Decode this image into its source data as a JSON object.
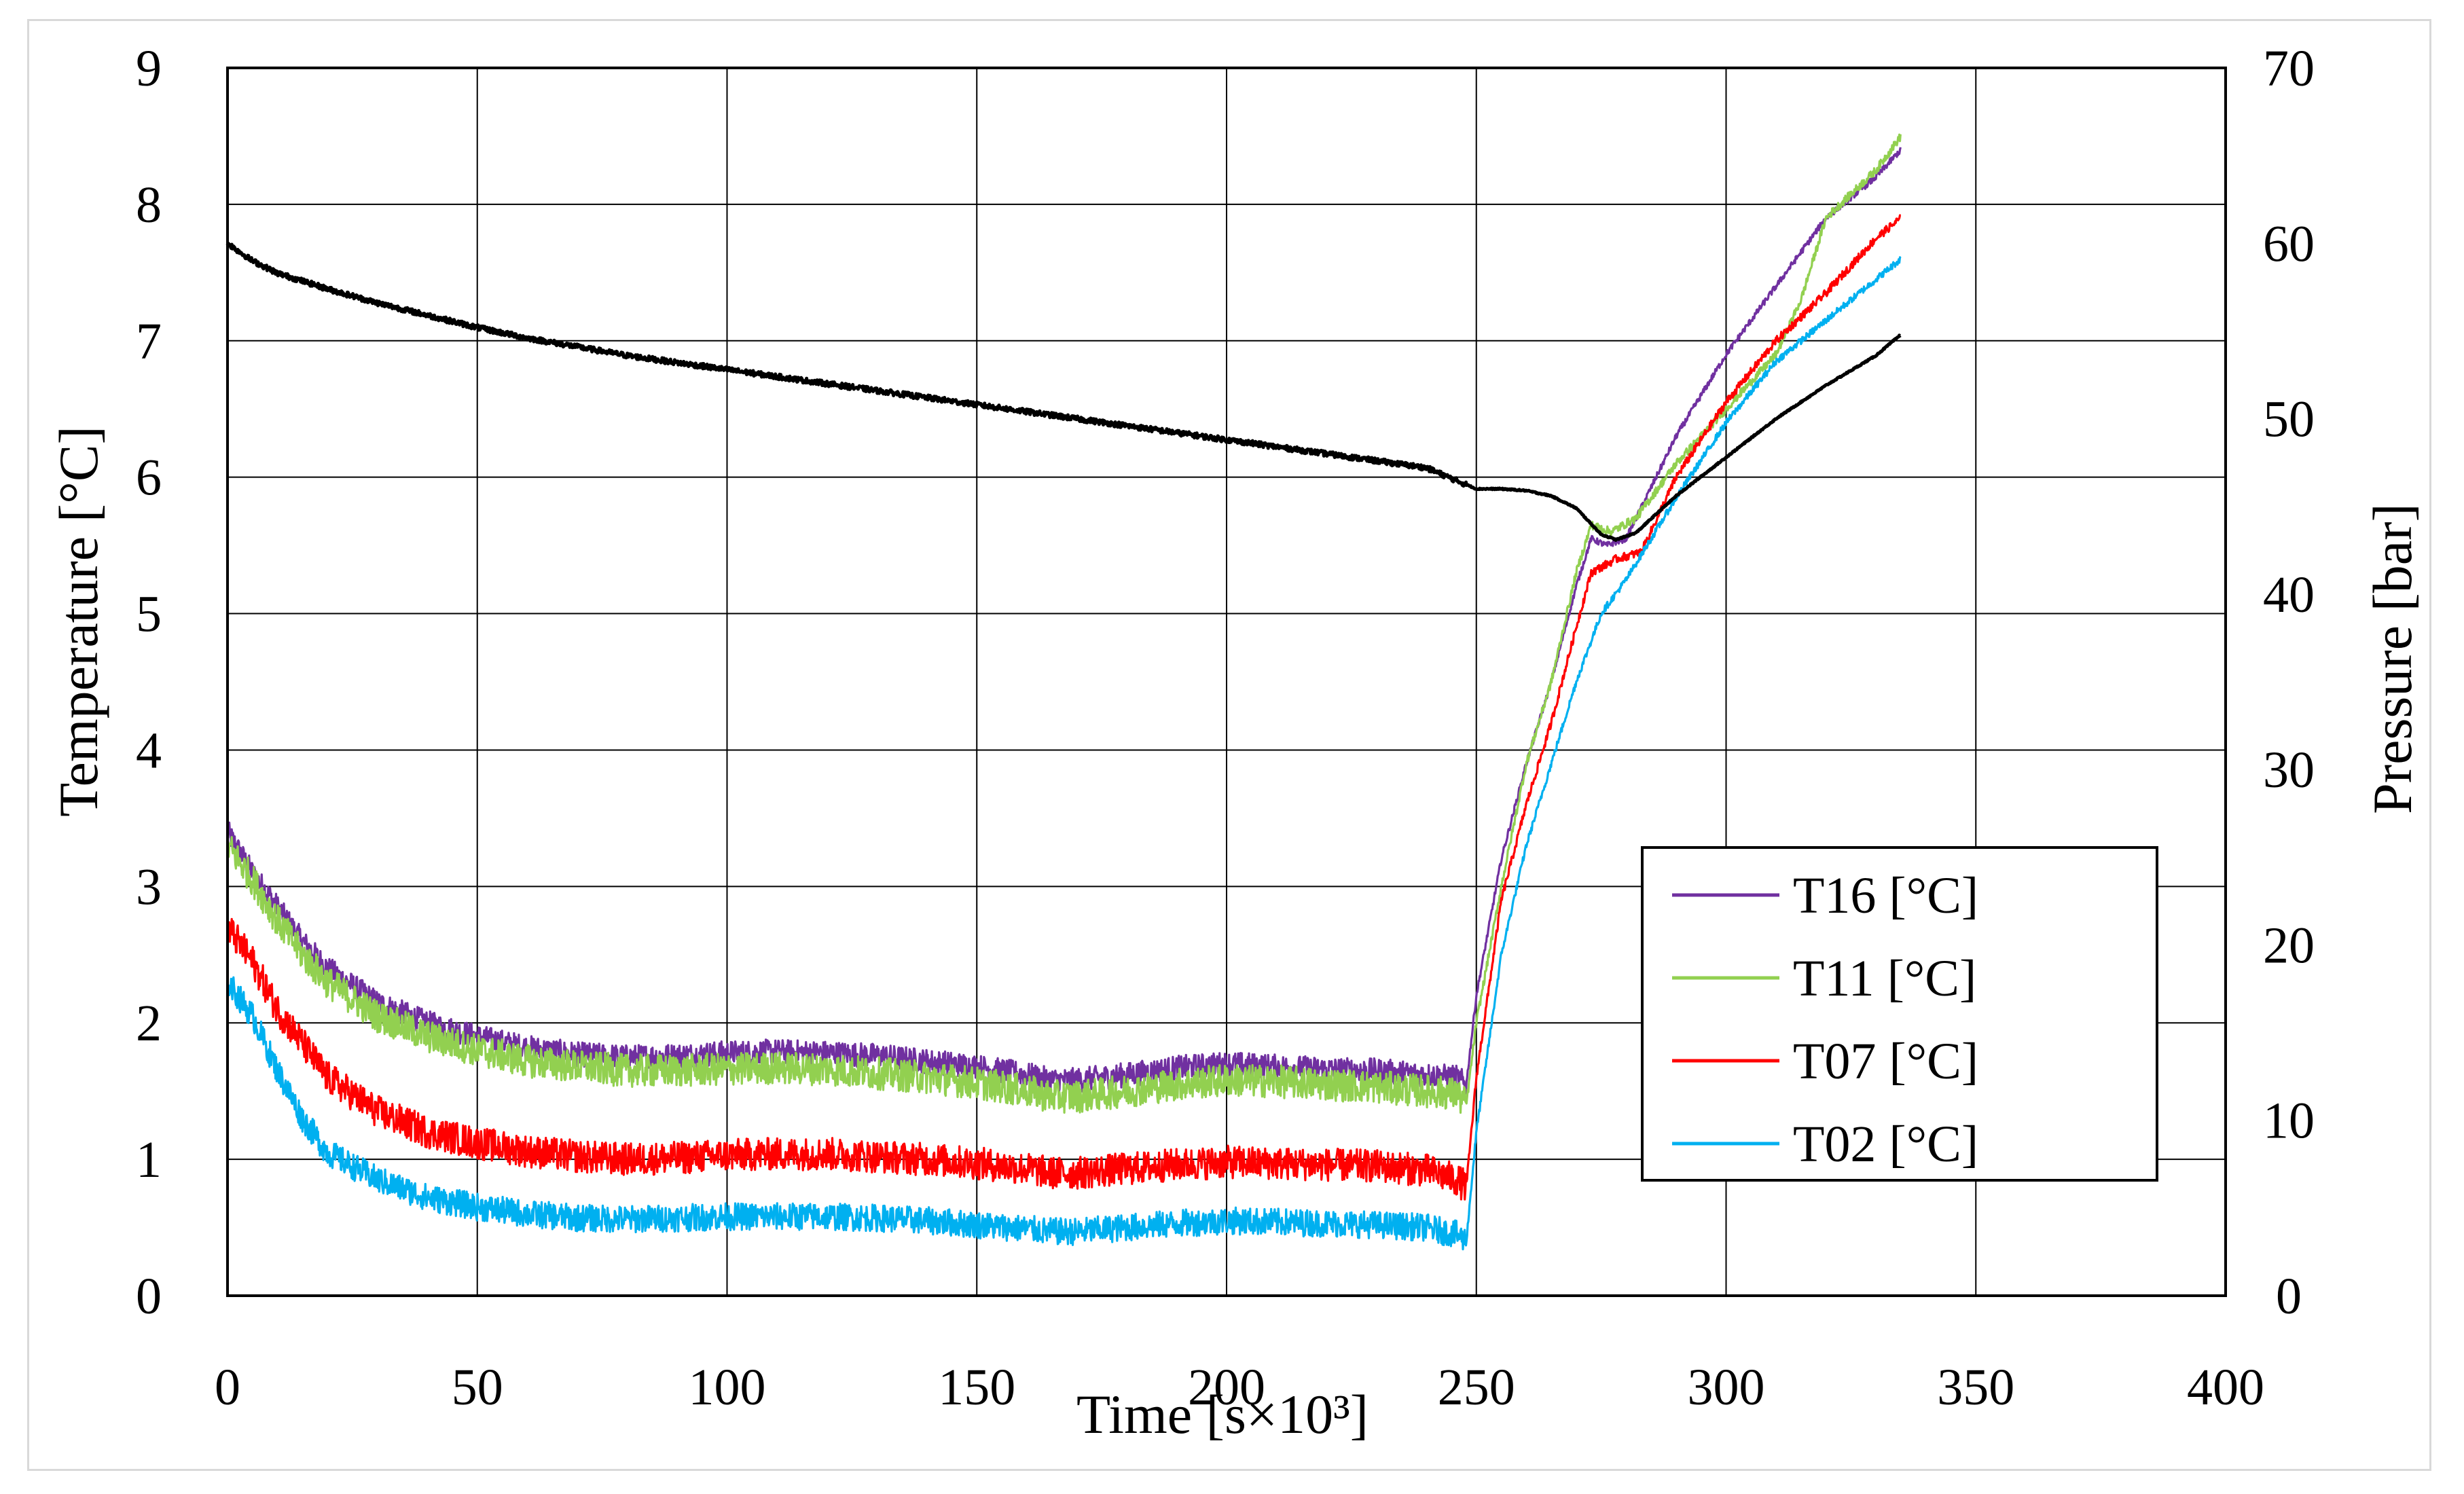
{
  "chart_data": {
    "type": "line",
    "title": "",
    "xlabel": "Time [s×10³]",
    "ylabel": "Temperature [°C]",
    "y2label": "Pressure [bar]",
    "xlim": [
      0,
      400
    ],
    "ylim": [
      0,
      9
    ],
    "y2lim": [
      0,
      70
    ],
    "x_ticks": [
      0,
      50,
      100,
      150,
      200,
      250,
      300,
      350,
      400
    ],
    "y_ticks": [
      0,
      1,
      2,
      3,
      4,
      5,
      6,
      7,
      8,
      9
    ],
    "y2_ticks": [
      0,
      10,
      20,
      30,
      40,
      50,
      60,
      70
    ],
    "grid": true,
    "legend_position": "lower-right",
    "series": [
      {
        "name": "T16 [°C]",
        "color": "#7030a0",
        "axis": "left",
        "noise": 0.09,
        "points": [
          [
            0,
            3.4
          ],
          [
            5,
            3.1
          ],
          [
            10,
            2.85
          ],
          [
            15,
            2.6
          ],
          [
            20,
            2.4
          ],
          [
            30,
            2.15
          ],
          [
            40,
            2.0
          ],
          [
            50,
            1.9
          ],
          [
            60,
            1.82
          ],
          [
            70,
            1.77
          ],
          [
            80,
            1.75
          ],
          [
            90,
            1.76
          ],
          [
            100,
            1.78
          ],
          [
            110,
            1.79
          ],
          [
            120,
            1.78
          ],
          [
            130,
            1.76
          ],
          [
            140,
            1.72
          ],
          [
            150,
            1.68
          ],
          [
            160,
            1.62
          ],
          [
            165,
            1.58
          ],
          [
            170,
            1.58
          ],
          [
            180,
            1.62
          ],
          [
            190,
            1.67
          ],
          [
            200,
            1.7
          ],
          [
            210,
            1.68
          ],
          [
            220,
            1.66
          ],
          [
            230,
            1.65
          ],
          [
            240,
            1.62
          ],
          [
            246,
            1.6
          ],
          [
            248,
            1.55
          ],
          [
            250,
            2.2
          ],
          [
            255,
            3.2
          ],
          [
            260,
            3.9
          ],
          [
            265,
            4.5
          ],
          [
            270,
            5.2
          ],
          [
            273,
            5.55
          ],
          [
            276,
            5.5
          ],
          [
            280,
            5.55
          ],
          [
            290,
            6.3
          ],
          [
            300,
            6.9
          ],
          [
            310,
            7.4
          ],
          [
            320,
            7.9
          ],
          [
            330,
            8.2
          ],
          [
            335,
            8.4
          ]
        ]
      },
      {
        "name": "T11 [°C]",
        "color": "#92d050",
        "axis": "left",
        "noise": 0.12,
        "points": [
          [
            0,
            3.3
          ],
          [
            5,
            3.05
          ],
          [
            10,
            2.75
          ],
          [
            15,
            2.5
          ],
          [
            20,
            2.3
          ],
          [
            30,
            2.05
          ],
          [
            40,
            1.9
          ],
          [
            50,
            1.8
          ],
          [
            60,
            1.72
          ],
          [
            70,
            1.68
          ],
          [
            80,
            1.65
          ],
          [
            90,
            1.65
          ],
          [
            100,
            1.66
          ],
          [
            110,
            1.67
          ],
          [
            120,
            1.66
          ],
          [
            130,
            1.63
          ],
          [
            140,
            1.6
          ],
          [
            150,
            1.56
          ],
          [
            160,
            1.5
          ],
          [
            165,
            1.46
          ],
          [
            170,
            1.46
          ],
          [
            180,
            1.5
          ],
          [
            190,
            1.55
          ],
          [
            200,
            1.58
          ],
          [
            210,
            1.57
          ],
          [
            220,
            1.55
          ],
          [
            230,
            1.53
          ],
          [
            240,
            1.5
          ],
          [
            246,
            1.48
          ],
          [
            248,
            1.4
          ],
          [
            250,
            2.0
          ],
          [
            255,
            3.0
          ],
          [
            260,
            3.9
          ],
          [
            265,
            4.5
          ],
          [
            270,
            5.3
          ],
          [
            273,
            5.65
          ],
          [
            277,
            5.6
          ],
          [
            282,
            5.7
          ],
          [
            290,
            6.1
          ],
          [
            300,
            6.5
          ],
          [
            310,
            6.9
          ],
          [
            315,
            7.3
          ],
          [
            320,
            7.9
          ],
          [
            330,
            8.25
          ],
          [
            335,
            8.5
          ]
        ]
      },
      {
        "name": "T07 [°C]",
        "color": "#ff0000",
        "axis": "left",
        "noise": 0.12,
        "points": [
          [
            0,
            2.7
          ],
          [
            5,
            2.45
          ],
          [
            10,
            2.1
          ],
          [
            15,
            1.85
          ],
          [
            20,
            1.6
          ],
          [
            30,
            1.35
          ],
          [
            40,
            1.2
          ],
          [
            50,
            1.12
          ],
          [
            60,
            1.06
          ],
          [
            70,
            1.02
          ],
          [
            80,
            1.0
          ],
          [
            90,
            1.01
          ],
          [
            100,
            1.03
          ],
          [
            110,
            1.04
          ],
          [
            120,
            1.04
          ],
          [
            130,
            1.02
          ],
          [
            140,
            1.0
          ],
          [
            150,
            0.97
          ],
          [
            160,
            0.93
          ],
          [
            165,
            0.9
          ],
          [
            170,
            0.9
          ],
          [
            180,
            0.93
          ],
          [
            190,
            0.96
          ],
          [
            200,
            0.98
          ],
          [
            210,
            0.97
          ],
          [
            220,
            0.96
          ],
          [
            230,
            0.95
          ],
          [
            240,
            0.92
          ],
          [
            246,
            0.85
          ],
          [
            248,
            0.8
          ],
          [
            250,
            1.6
          ],
          [
            255,
            2.9
          ],
          [
            260,
            3.6
          ],
          [
            265,
            4.2
          ],
          [
            270,
            4.9
          ],
          [
            273,
            5.3
          ],
          [
            278,
            5.4
          ],
          [
            283,
            5.45
          ],
          [
            290,
            6.0
          ],
          [
            300,
            6.55
          ],
          [
            310,
            7.0
          ],
          [
            320,
            7.35
          ],
          [
            330,
            7.75
          ],
          [
            335,
            7.9
          ]
        ]
      },
      {
        "name": "T02 [°C]",
        "color": "#00b0f0",
        "axis": "left",
        "noise": 0.1,
        "points": [
          [
            0,
            2.3
          ],
          [
            5,
            2.05
          ],
          [
            10,
            1.65
          ],
          [
            15,
            1.3
          ],
          [
            20,
            1.05
          ],
          [
            30,
            0.85
          ],
          [
            40,
            0.72
          ],
          [
            50,
            0.65
          ],
          [
            60,
            0.6
          ],
          [
            70,
            0.57
          ],
          [
            80,
            0.56
          ],
          [
            90,
            0.57
          ],
          [
            100,
            0.58
          ],
          [
            110,
            0.58
          ],
          [
            120,
            0.58
          ],
          [
            130,
            0.57
          ],
          [
            140,
            0.55
          ],
          [
            150,
            0.52
          ],
          [
            160,
            0.49
          ],
          [
            165,
            0.47
          ],
          [
            170,
            0.47
          ],
          [
            180,
            0.5
          ],
          [
            190,
            0.53
          ],
          [
            200,
            0.55
          ],
          [
            210,
            0.54
          ],
          [
            220,
            0.53
          ],
          [
            230,
            0.52
          ],
          [
            240,
            0.5
          ],
          [
            246,
            0.45
          ],
          [
            248,
            0.4
          ],
          [
            250,
            1.2
          ],
          [
            255,
            2.5
          ],
          [
            260,
            3.3
          ],
          [
            265,
            3.9
          ],
          [
            270,
            4.5
          ],
          [
            275,
            5.0
          ],
          [
            280,
            5.25
          ],
          [
            290,
            5.85
          ],
          [
            300,
            6.4
          ],
          [
            310,
            6.85
          ],
          [
            320,
            7.15
          ],
          [
            330,
            7.45
          ],
          [
            335,
            7.6
          ]
        ]
      },
      {
        "name": "Pressure [bar]",
        "color": "#000000",
        "axis": "right",
        "noise": 0.15,
        "in_legend": false,
        "points": [
          [
            0,
            60
          ],
          [
            5,
            59
          ],
          [
            10,
            58.3
          ],
          [
            20,
            57.4
          ],
          [
            30,
            56.6
          ],
          [
            40,
            55.9
          ],
          [
            50,
            55.2
          ],
          [
            60,
            54.6
          ],
          [
            70,
            54.1
          ],
          [
            80,
            53.6
          ],
          [
            90,
            53.2
          ],
          [
            100,
            52.8
          ],
          [
            110,
            52.4
          ],
          [
            120,
            52.0
          ],
          [
            130,
            51.6
          ],
          [
            140,
            51.2
          ],
          [
            150,
            50.8
          ],
          [
            160,
            50.4
          ],
          [
            170,
            50.0
          ],
          [
            180,
            49.6
          ],
          [
            190,
            49.2
          ],
          [
            200,
            48.8
          ],
          [
            210,
            48.4
          ],
          [
            220,
            48.0
          ],
          [
            230,
            47.6
          ],
          [
            240,
            47.2
          ],
          [
            250,
            46.0
          ],
          [
            255,
            46.0
          ],
          [
            260,
            45.9
          ],
          [
            265,
            45.6
          ],
          [
            270,
            44.9
          ],
          [
            275,
            43.4
          ],
          [
            278,
            43.1
          ],
          [
            282,
            43.5
          ],
          [
            285,
            44.3
          ],
          [
            290,
            45.6
          ],
          [
            300,
            47.8
          ],
          [
            310,
            50.0
          ],
          [
            320,
            51.9
          ],
          [
            330,
            53.6
          ],
          [
            335,
            54.8
          ]
        ]
      }
    ]
  }
}
